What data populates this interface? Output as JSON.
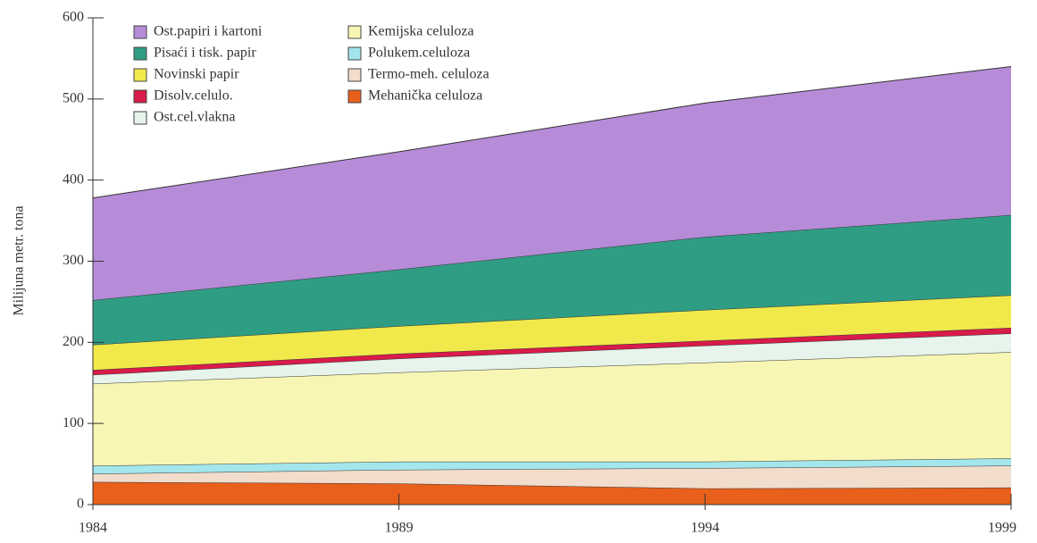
{
  "chart_data": {
    "type": "stacked_area",
    "y_label": "Milijuna metr. tona",
    "x": [
      1984,
      1989,
      1994,
      1999
    ],
    "xlim": [
      1984,
      1999
    ],
    "xticks": [
      1984,
      1989,
      1994,
      1999
    ],
    "ylim": [
      0,
      600
    ],
    "yticks": [
      0,
      100,
      200,
      300,
      400,
      500,
      600
    ],
    "series": [
      {
        "name": "Mehanička celuloza",
        "color": "#e8601c",
        "values": [
          28,
          26,
          20,
          21
        ]
      },
      {
        "name": "Termo-meh. celuloza",
        "color": "#f2dccb",
        "values": [
          10,
          17,
          25,
          27
        ]
      },
      {
        "name": "Polukem.celuloza",
        "color": "#a3e6ec",
        "values": [
          10,
          10,
          8,
          9
        ]
      },
      {
        "name": "Kemijska celuloza",
        "color": "#f8f6b4",
        "values": [
          101,
          110,
          122,
          131
        ]
      },
      {
        "name": "Ost.cel.vlakna",
        "color": "#e6f4ec",
        "values": [
          11,
          17,
          21,
          23
        ]
      },
      {
        "name": "Disolv.celulo.",
        "color": "#d81b4a",
        "values": [
          6,
          6,
          6,
          7
        ]
      },
      {
        "name": "Novinski papir",
        "color": "#f1e94c",
        "values": [
          31,
          34,
          38,
          40
        ]
      },
      {
        "name": "Pisaći i tisk. papir",
        "color": "#2f9d84",
        "values": [
          55,
          70,
          90,
          99
        ]
      },
      {
        "name": "Ost.papiri i kartoni",
        "color": "#b68bd7",
        "values": [
          126,
          145,
          165,
          183
        ]
      }
    ]
  }
}
